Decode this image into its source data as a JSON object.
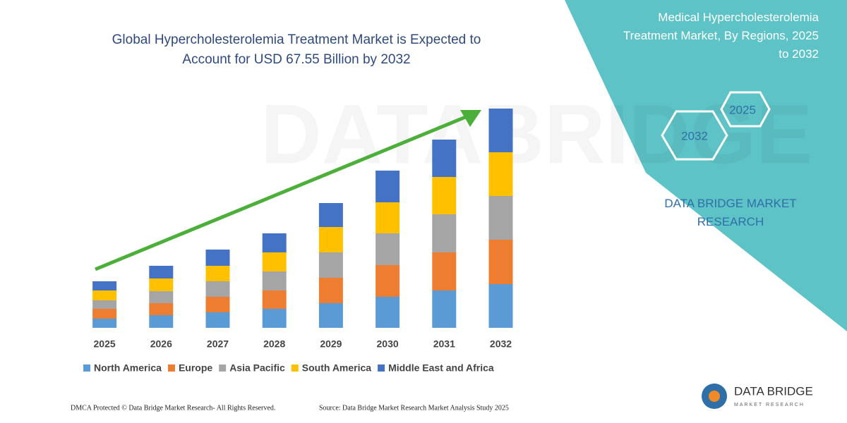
{
  "chart_data": {
    "type": "bar",
    "stacked": true,
    "title": "Global Hypercholesterolemia Treatment Market is Expected to Account for USD 67.55 Billion by 2032",
    "categories": [
      "2025",
      "2026",
      "2027",
      "2028",
      "2029",
      "2030",
      "2031",
      "2032"
    ],
    "series": [
      {
        "name": "North America",
        "color": "#5b9bd5",
        "values": [
          13,
          18,
          22,
          27,
          35,
          44,
          53,
          62
        ]
      },
      {
        "name": "Europe",
        "color": "#ed7d31",
        "values": [
          14,
          17,
          22,
          26,
          36,
          45,
          54,
          63
        ]
      },
      {
        "name": "Asia Pacific",
        "color": "#a5a5a5",
        "values": [
          12,
          17,
          22,
          27,
          36,
          45,
          54,
          62
        ]
      },
      {
        "name": "South America",
        "color": "#ffc000",
        "values": [
          14,
          18,
          22,
          27,
          36,
          44,
          53,
          62
        ]
      },
      {
        "name": "Middle East and Africa",
        "color": "#4472c4",
        "values": [
          13,
          18,
          23,
          27,
          34,
          45,
          53,
          62
        ]
      }
    ]
  },
  "side_panel": {
    "title": "Medical Hypercholesterolemia Treatment Market, By Regions, 2025 to 2032",
    "hexagon_labels": [
      "2025",
      "2032"
    ],
    "brand": "DATA BRIDGE MARKET RESEARCH"
  },
  "watermark": "DATABRIDGE",
  "footer": {
    "left": "DMCA Protected © Data Bridge Market Research-  All Rights Reserved.",
    "right": "Source: Data Bridge Market Research  Market Analysis Study 2025"
  },
  "logo": {
    "name": "DATA BRIDGE",
    "tagline": "MARKET RESEARCH"
  }
}
